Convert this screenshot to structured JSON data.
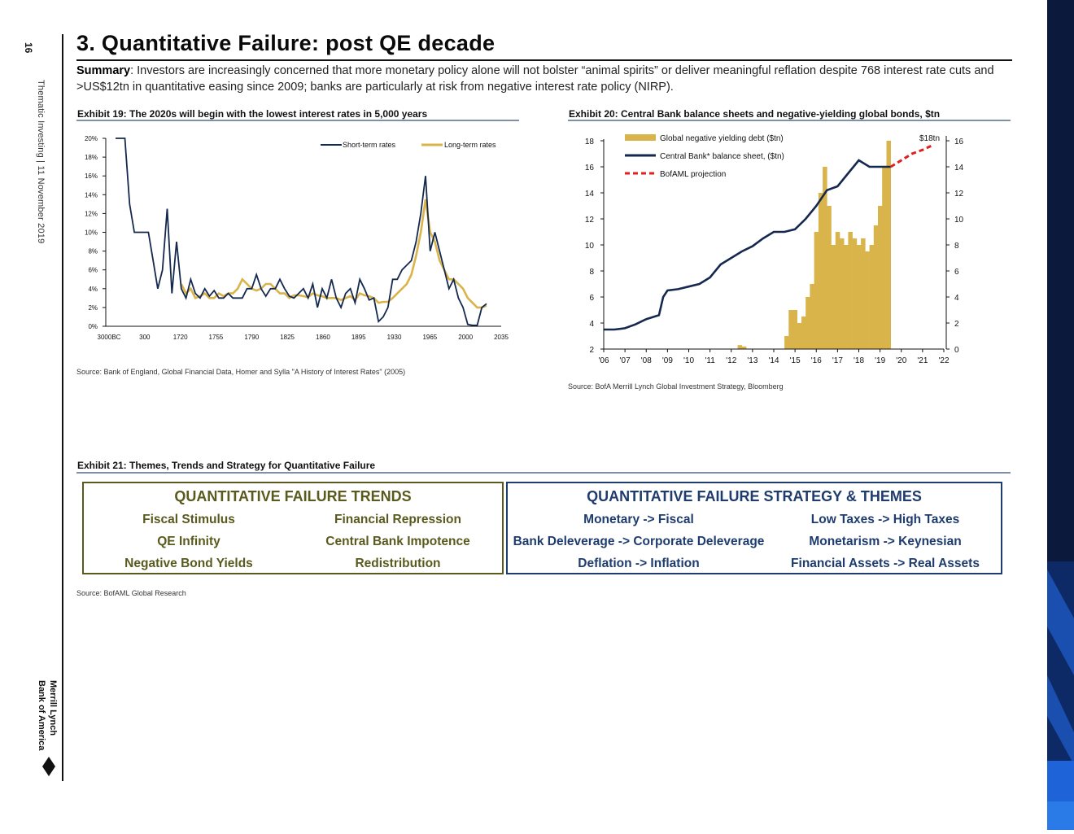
{
  "sidebar": {
    "page_number": "16",
    "doc_info": "Thematic Investing | 11 November 2019",
    "logo_text": "Bank of America Merrill Lynch"
  },
  "header": {
    "title": "3. Quantitative Failure: post QE decade",
    "summary_label": "Summary",
    "summary_text": ": Investors are increasingly concerned that more monetary policy alone will not bolster “animal spirits” or deliver meaningful reflation despite 768 interest rate cuts and >US$12tn in quantitative easing since 2009; banks are particularly at risk from negative interest rate policy (NIRP)."
  },
  "exhibit19": {
    "title": "Exhibit 19: The 2020s will begin with the lowest interest rates in 5,000 years",
    "source": "Source: Bank of England, Global Financial Data, Homer and Sylla \"A History of Interest Rates\" (2005)"
  },
  "exhibit20": {
    "title": "Exhibit 20: Central Bank balance sheets and negative-yielding global bonds, $tn",
    "source": "Source: BofA Merrill Lynch Global Investment Strategy, Bloomberg",
    "annotation": "$18tn"
  },
  "exhibit21": {
    "title": "Exhibit 21: Themes, Trends and Strategy for Quantitative Failure",
    "source": "Source: BofAML Global Research",
    "trends": {
      "heading": "QUANTITATIVE FAILURE TRENDS",
      "items": [
        "Fiscal Stimulus",
        "Financial Repression",
        "QE Infinity",
        "Central Bank Impotence",
        "Negative Bond Yields",
        "Redistribution"
      ],
      "color": "#5a5a1e"
    },
    "strategy": {
      "heading": "QUANTITATIVE FAILURE STRATEGY & THEMES",
      "items": [
        "Monetary -> Fiscal",
        "Low Taxes -> High Taxes",
        "Bank Deleverage -> Corporate Deleverage",
        "Monetarism -> Keynesian",
        "Deflation -> Inflation",
        "Financial Assets -> Real Assets"
      ],
      "color": "#1f3c6e"
    }
  },
  "chart_data": [
    {
      "type": "line",
      "title": "Exhibit 19: The 2020s will begin with the lowest interest rates in 5,000 years",
      "ylim": [
        0,
        20
      ],
      "y_ticks": [
        "0%",
        "2%",
        "4%",
        "6%",
        "8%",
        "10%",
        "12%",
        "14%",
        "16%",
        "18%",
        "20%"
      ],
      "x_tick_labels": [
        "3000BC",
        "300",
        "1720",
        "1755",
        "1790",
        "1825",
        "1860",
        "1895",
        "1930",
        "1965",
        "2000",
        "2035"
      ],
      "legend_position": "top-right",
      "series": [
        {
          "name": "Short-term rates",
          "color": "#15294f",
          "values": [
            20,
            20,
            20,
            13,
            10,
            10,
            10,
            10,
            7,
            4,
            6,
            12.5,
            3.5,
            9,
            4,
            3,
            5,
            3.5,
            3,
            4,
            3.2,
            3.8,
            3,
            3,
            3.5,
            3,
            3,
            3,
            4,
            4,
            5.5,
            4,
            3.2,
            4,
            4,
            5,
            4,
            3.2,
            3,
            3.5,
            4,
            3,
            4.5,
            2,
            4,
            3,
            5,
            3,
            2,
            3.5,
            4,
            2.5,
            5,
            4,
            2.8,
            3,
            0.5,
            1,
            2,
            5,
            5,
            6,
            6.5,
            7,
            9,
            12,
            16,
            8,
            10,
            8,
            6,
            4,
            5,
            3,
            2,
            0.2,
            0.1,
            0.1,
            2,
            2.4
          ]
        },
        {
          "name": "Long-term rates",
          "color": "#d9b44a",
          "values": [
            null,
            null,
            null,
            null,
            null,
            null,
            null,
            null,
            null,
            null,
            null,
            null,
            null,
            null,
            4.5,
            3.5,
            4,
            3,
            3.2,
            3.5,
            3,
            3,
            3.5,
            3.2,
            3.5,
            3.5,
            4,
            5,
            4.5,
            4,
            3.8,
            4,
            4.5,
            4.5,
            4,
            3.5,
            3.5,
            3,
            3.3,
            3.3,
            3.2,
            3.1,
            3.5,
            3.3,
            3.2,
            3,
            3,
            3,
            2.8,
            3,
            3.2,
            2.8,
            3.5,
            3.3,
            3.2,
            3,
            2.5,
            2.6,
            2.6,
            3,
            3.5,
            4,
            4.5,
            5.5,
            7.5,
            10,
            13.5,
            10,
            9,
            7,
            6,
            5,
            5,
            4.5,
            4,
            3,
            2.5,
            2,
            2,
            2.2
          ]
        }
      ]
    },
    {
      "type": "bar",
      "title": "Exhibit 20: Central Bank balance sheets and negative-yielding global bonds, $tn",
      "x_tick_labels": [
        "'06",
        "'07",
        "'08",
        "'09",
        "'10",
        "'11",
        "'12",
        "'13",
        "'14",
        "'15",
        "'16",
        "'17",
        "'18",
        "'19",
        "'20",
        "'21",
        "'22"
      ],
      "xlim": [
        2006,
        2022
      ],
      "left_axis": {
        "label": "Central Bank* balance sheet, ($tn)",
        "ylim": [
          2,
          18
        ],
        "ticks": [
          "2",
          "4",
          "6",
          "8",
          "10",
          "12",
          "14",
          "16",
          "18"
        ]
      },
      "right_axis": {
        "label": "Global negative yielding debt ($tn)",
        "ylim": [
          0,
          16
        ],
        "ticks": [
          "0",
          "2",
          "4",
          "6",
          "8",
          "10",
          "12",
          "14",
          "16"
        ]
      },
      "series": [
        {
          "name": "Global negative yielding debt ($tn)",
          "type": "bar",
          "axis": "right",
          "color": "#d9b44a",
          "x": [
            2012.4,
            2012.6,
            2014.6,
            2014.8,
            2015.0,
            2015.2,
            2015.4,
            2015.6,
            2015.8,
            2016.0,
            2016.2,
            2016.4,
            2016.6,
            2016.8,
            2017.0,
            2017.2,
            2017.4,
            2017.6,
            2017.8,
            2018.0,
            2018.2,
            2018.4,
            2018.6,
            2018.8,
            2019.0,
            2019.2,
            2019.4
          ],
          "values": [
            0.3,
            0.2,
            1,
            3,
            3,
            2,
            2.5,
            4,
            5,
            9,
            12,
            14,
            11,
            8,
            9,
            8.5,
            8,
            9,
            8.5,
            8,
            8.5,
            7.5,
            8,
            9.5,
            11,
            14,
            16
          ]
        },
        {
          "name": "Central Bank* balance sheet, ($tn)",
          "type": "line",
          "axis": "left",
          "color": "#15294f",
          "x": [
            2006.0,
            2006.5,
            2007.0,
            2007.5,
            2008.0,
            2008.6,
            2008.8,
            2009.0,
            2009.5,
            2010.0,
            2010.5,
            2011.0,
            2011.5,
            2012.0,
            2012.5,
            2013.0,
            2013.5,
            2014.0,
            2014.5,
            2015.0,
            2015.5,
            2016.0,
            2016.5,
            2017.0,
            2017.5,
            2018.0,
            2018.5,
            2019.0,
            2019.5
          ],
          "values": [
            3.5,
            3.5,
            3.6,
            3.9,
            4.3,
            4.6,
            6.0,
            6.5,
            6.6,
            6.8,
            7.0,
            7.5,
            8.5,
            9.0,
            9.5,
            9.9,
            10.5,
            11.0,
            11.0,
            11.2,
            12.0,
            13.0,
            14.2,
            14.5,
            15.5,
            16.5,
            16.0,
            16.0,
            16.0
          ]
        },
        {
          "name": "BofAML projection",
          "type": "line",
          "axis": "left",
          "color": "#e02020",
          "dashed": true,
          "x": [
            2019.5,
            2020.0,
            2020.5,
            2021.0,
            2021.4
          ],
          "values": [
            16.0,
            16.5,
            17.0,
            17.3,
            17.6
          ]
        }
      ]
    }
  ]
}
